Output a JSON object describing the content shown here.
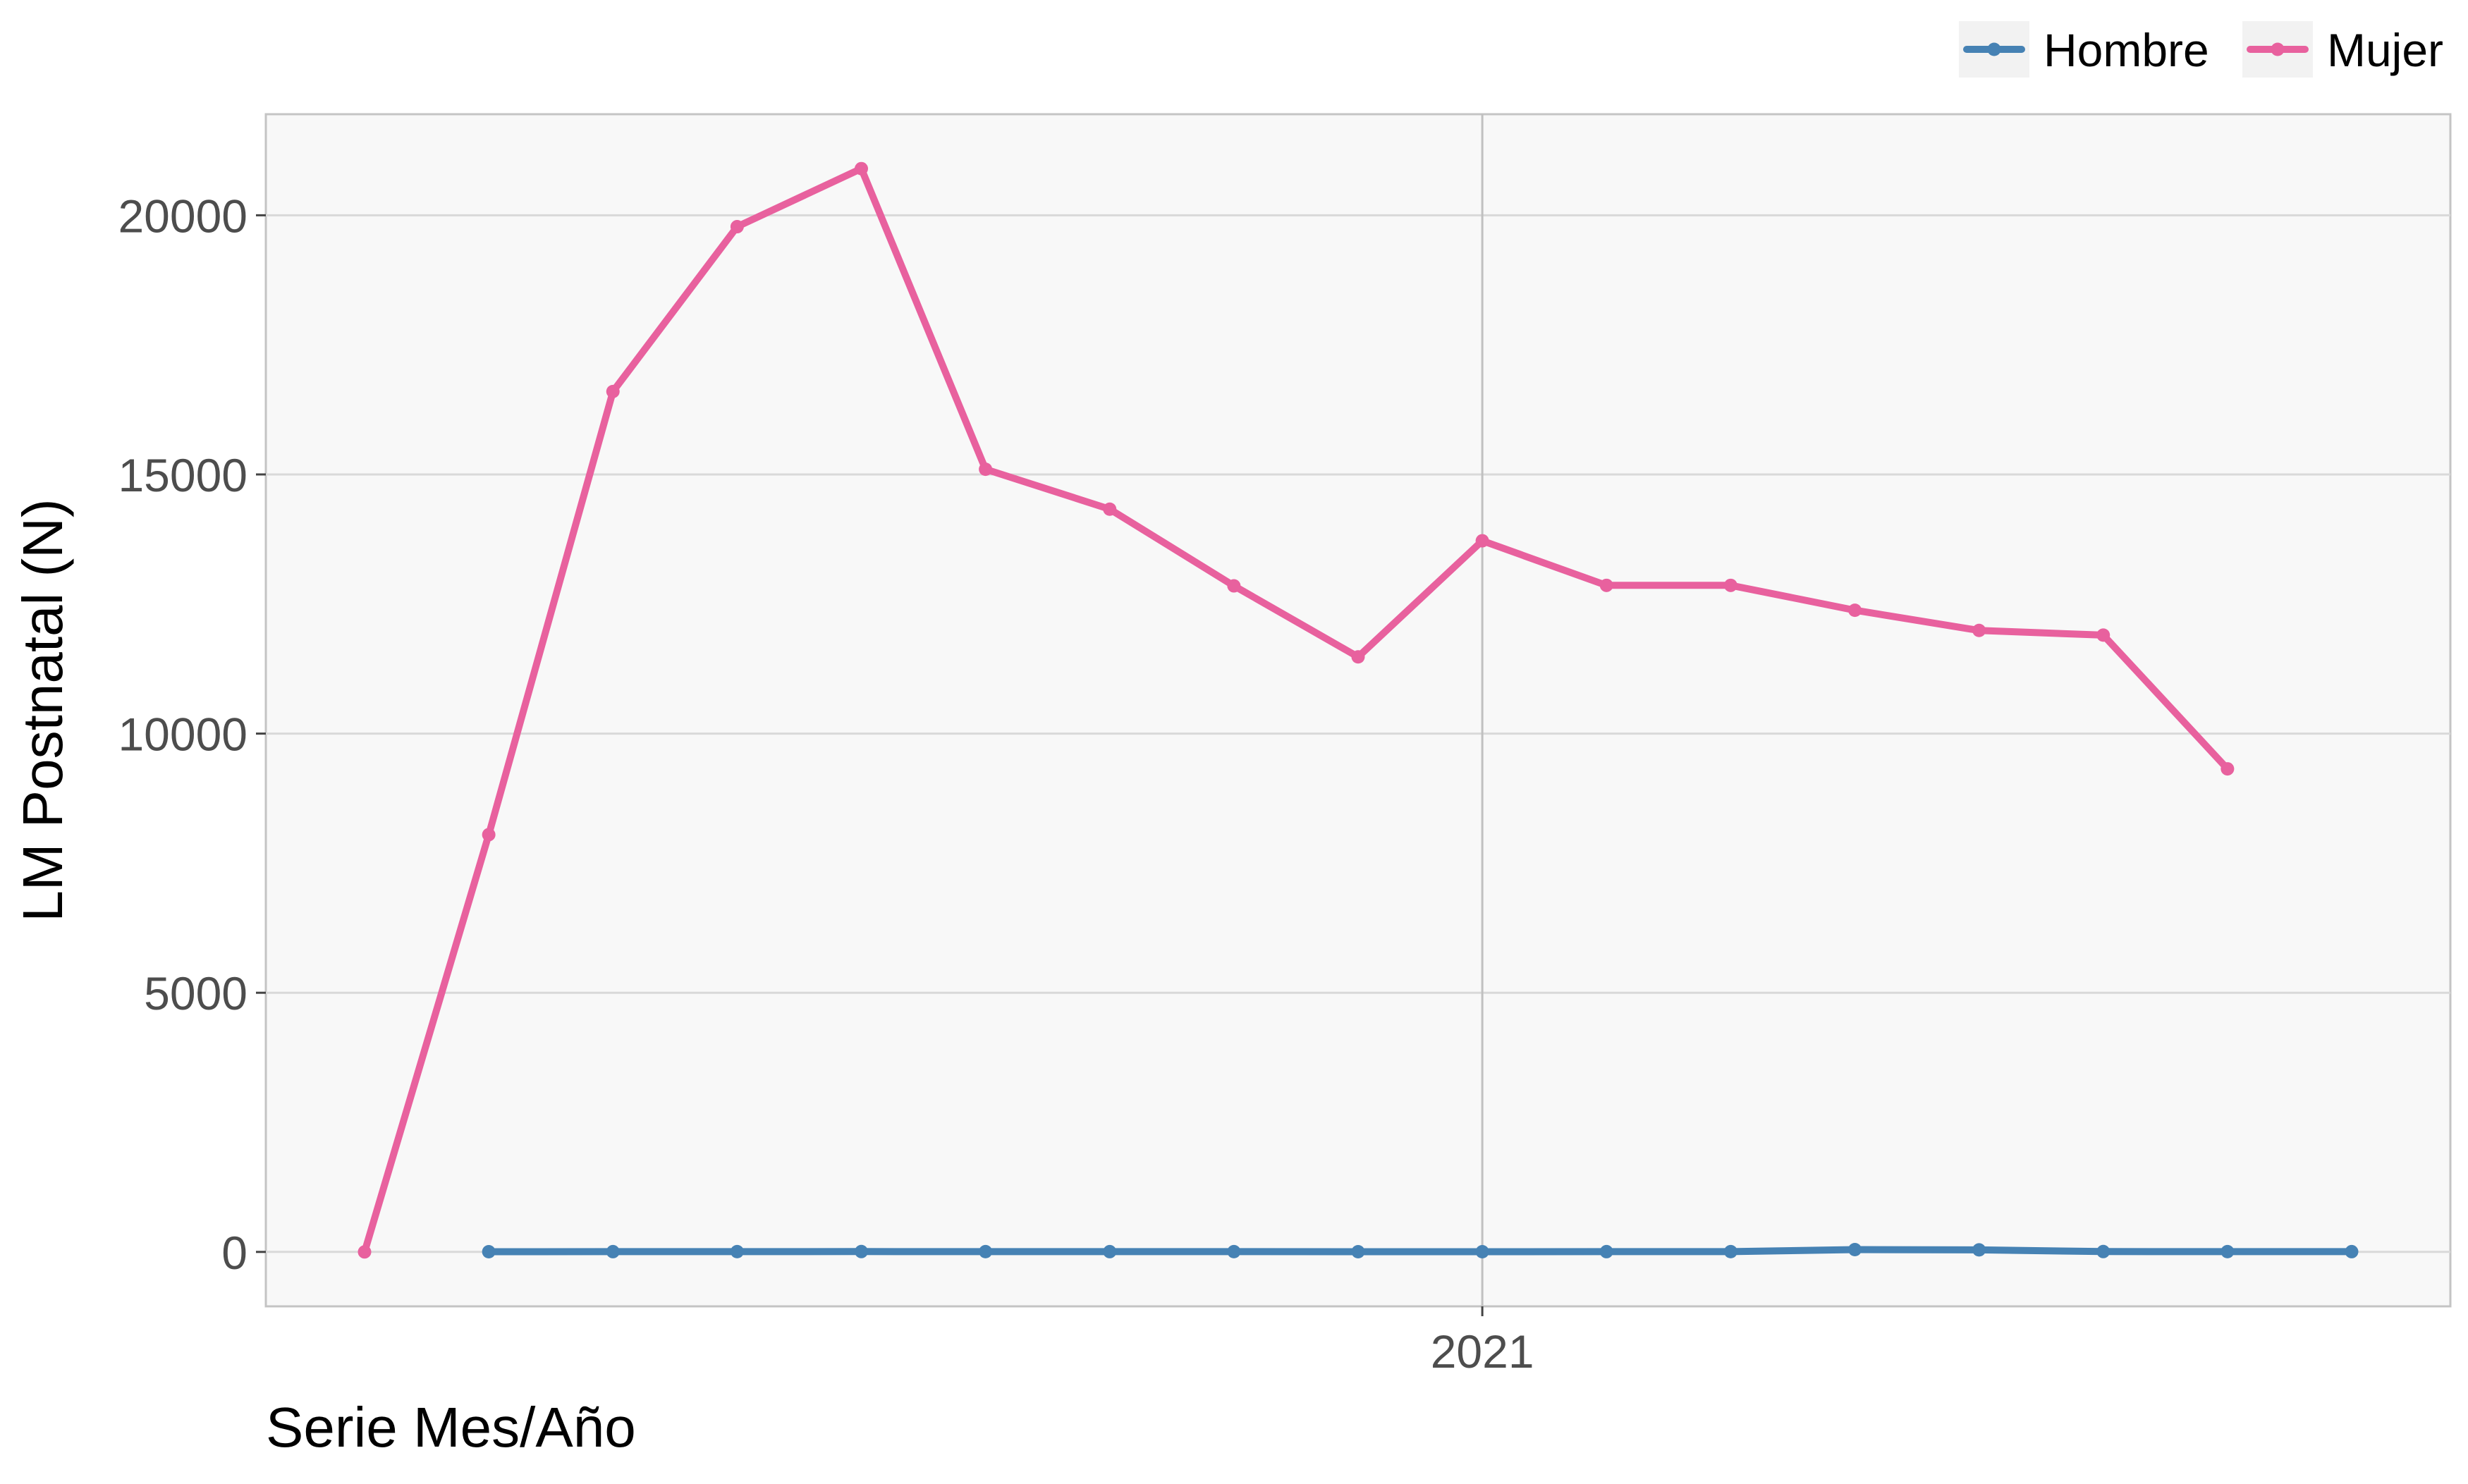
{
  "chart_data": {
    "type": "line",
    "title": "",
    "xlabel": "Serie Mes/Año",
    "ylabel": "LM Postnatal (N)",
    "x": [
      "2020-04",
      "2020-05",
      "2020-06",
      "2020-07",
      "2020-08",
      "2020-09",
      "2020-10",
      "2020-11",
      "2020-12",
      "2021-01",
      "2021-02",
      "2021-03",
      "2021-04",
      "2021-05",
      "2021-06",
      "2021-07",
      "2021-08"
    ],
    "x_tick_labels": [
      {
        "x": "2021-01",
        "label": "2021"
      }
    ],
    "ylim": [
      -1050,
      21950
    ],
    "y_ticks": [
      0,
      5000,
      10000,
      15000,
      20000
    ],
    "y_tick_labels": [
      "0",
      "5000",
      "10000",
      "15000",
      "20000"
    ],
    "grid": true,
    "legend_position": "top-right",
    "series": [
      {
        "name": "Hombre",
        "color": "#4682B4",
        "values": [
          null,
          4,
          5,
          6,
          7,
          6,
          5,
          6,
          4,
          4,
          5,
          6,
          45,
          40,
          7,
          6,
          5
        ]
      },
      {
        "name": "Mujer",
        "color": "#E8619E",
        "values": [
          0,
          8050,
          16600,
          19780,
          20900,
          15100,
          14330,
          12850,
          11480,
          13720,
          12860,
          12860,
          12380,
          11990,
          11900,
          9320,
          null
        ]
      }
    ]
  }
}
